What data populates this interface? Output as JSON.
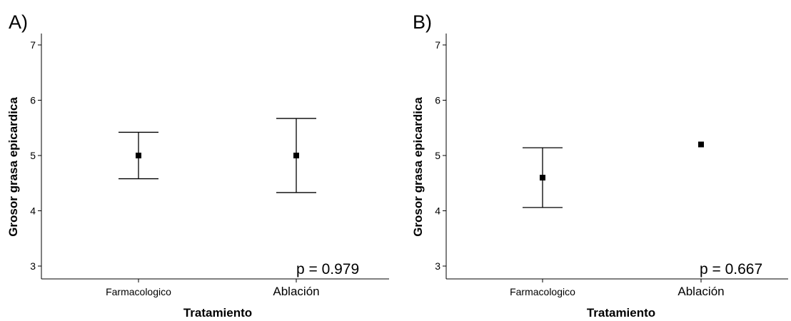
{
  "chart_data": [
    {
      "type": "scatter",
      "panel_label": "A)",
      "xlabel": "Tratamiento",
      "ylabel": "Grosor grasa epicardica",
      "categories": [
        "Farmacologico",
        "Ablación"
      ],
      "yticks": [
        3,
        4,
        5,
        6,
        7
      ],
      "ylim": [
        2.8,
        7.2
      ],
      "grid": false,
      "points": [
        {
          "category": "Farmacologico",
          "mean": 5.0,
          "lower": 4.58,
          "upper": 5.42
        },
        {
          "category": "Ablación",
          "mean": 5.0,
          "lower": 4.33,
          "upper": 5.67
        }
      ],
      "annotation": "p = 0.979"
    },
    {
      "type": "scatter",
      "panel_label": "B)",
      "xlabel": "Tratamiento",
      "ylabel": "Grosor grasa epicardica",
      "categories": [
        "Farmacologico",
        "Ablación"
      ],
      "yticks": [
        3,
        4,
        5,
        6,
        7
      ],
      "ylim": [
        2.8,
        7.2
      ],
      "grid": false,
      "points": [
        {
          "category": "Farmacologico",
          "mean": 4.6,
          "lower": 4.06,
          "upper": 5.14
        },
        {
          "category": "Ablación",
          "mean": 5.2,
          "lower": null,
          "upper": null
        }
      ],
      "annotation": "p = 0.667"
    }
  ]
}
